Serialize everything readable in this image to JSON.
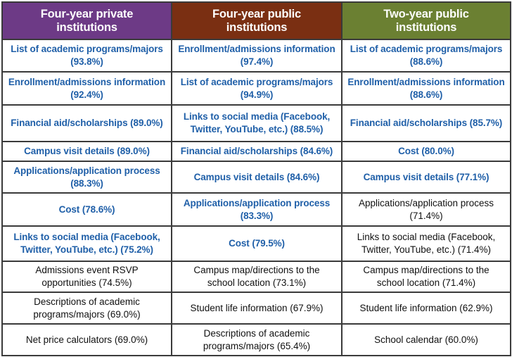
{
  "headers": [
    {
      "line1": "Four-year private",
      "line2": "institutions"
    },
    {
      "line1": "Four-year public",
      "line2": "institutions"
    },
    {
      "line1": "Two-year public",
      "line2": "institutions"
    }
  ],
  "rows": [
    [
      {
        "line1": "List of academic programs/majors",
        "line2": "(93.8%)",
        "bold": true
      },
      {
        "line1": "Enrollment/admissions information",
        "line2": "(97.4%)",
        "bold": true
      },
      {
        "line1": "List of academic programs/majors",
        "line2": "(88.6%)",
        "bold": true
      }
    ],
    [
      {
        "line1": "Enrollment/admissions information",
        "line2": "(92.4%)",
        "bold": true
      },
      {
        "line1": "List of academic programs/majors",
        "line2": "(94.9%)",
        "bold": true
      },
      {
        "line1": "Enrollment/admissions information",
        "line2": "(88.6%)",
        "bold": true
      }
    ],
    [
      {
        "line1": "Financial aid/scholarships (89.0%)",
        "line2": "",
        "bold": true
      },
      {
        "line1": "Links to social media (Facebook,",
        "line2": "Twitter, YouTube, etc.) (88.5%)",
        "bold": true
      },
      {
        "line1": "Financial aid/scholarships (85.7%)",
        "line2": "",
        "bold": true
      }
    ],
    [
      {
        "line1": "Campus visit details (89.0%)",
        "line2": "",
        "bold": true
      },
      {
        "line1": "Financial aid/scholarships (84.6%)",
        "line2": "",
        "bold": true
      },
      {
        "line1": "Cost (80.0%)",
        "line2": "",
        "bold": true
      }
    ],
    [
      {
        "line1": "Applications/application process",
        "line2": "(88.3%)",
        "bold": true
      },
      {
        "line1": "Campus visit details (84.6%)",
        "line2": "",
        "bold": true
      },
      {
        "line1": "Campus visit details (77.1%)",
        "line2": "",
        "bold": true
      }
    ],
    [
      {
        "line1": "Cost (78.6%)",
        "line2": "",
        "bold": true
      },
      {
        "line1": "Applications/application process",
        "line2": "(83.3%)",
        "bold": true
      },
      {
        "line1": "Applications/application process",
        "line2": "(71.4%)",
        "bold": false
      }
    ],
    [
      {
        "line1": "Links to social media (Facebook,",
        "line2": "Twitter, YouTube, etc.) (75.2%)",
        "bold": true
      },
      {
        "line1": "Cost (79.5%)",
        "line2": "",
        "bold": true
      },
      {
        "line1": "Links to social media (Facebook,",
        "line2": "Twitter, YouTube, etc.) (71.4%)",
        "bold": false
      }
    ],
    [
      {
        "line1": "Admissions event RSVP",
        "line2": "opportunities (74.5%)",
        "bold": false
      },
      {
        "line1": "Campus map/directions to the",
        "line2": "school location (73.1%)",
        "bold": false
      },
      {
        "line1": "Campus map/directions to the",
        "line2": "school location (71.4%)",
        "bold": false
      }
    ],
    [
      {
        "line1": "Descriptions of academic",
        "line2": "programs/majors (69.0%)",
        "bold": false
      },
      {
        "line1": "Student life information (67.9%)",
        "line2": "",
        "bold": false
      },
      {
        "line1": "Student life information (62.9%)",
        "line2": "",
        "bold": false
      }
    ],
    [
      {
        "line1": "Net price calculators (69.0%)",
        "line2": "",
        "bold": false
      },
      {
        "line1": "Descriptions of academic",
        "line2": "programs/majors (65.4%)",
        "bold": false
      },
      {
        "line1": "School calendar (60.0%)",
        "line2": "",
        "bold": false
      }
    ]
  ],
  "colors": {
    "header_private": "#6d3a86",
    "header_public_four_year": "#7a2f12",
    "header_public_two_year": "#6b8032",
    "highlight_text": "#1f5fa8",
    "plain_text": "#111111",
    "grid_lines": "#3a3a3a"
  }
}
